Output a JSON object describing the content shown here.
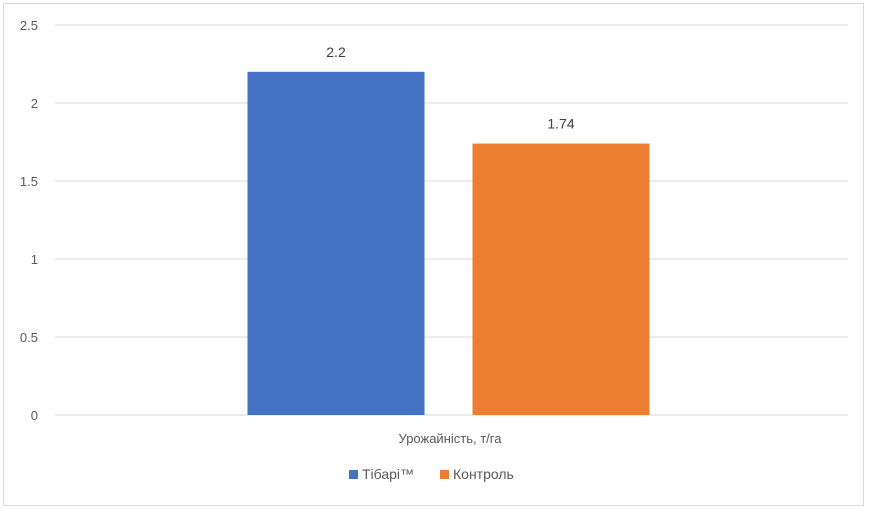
{
  "chart_data": {
    "type": "bar",
    "categories": [
      "Урожайність, т/га"
    ],
    "series": [
      {
        "name": "Тібарі™",
        "values": [
          2.2
        ],
        "color": "#4472c4"
      },
      {
        "name": "Контроль",
        "values": [
          1.74
        ],
        "color": "#ed7d31"
      }
    ],
    "ylim": [
      0,
      2.5
    ],
    "yticks": [
      "0",
      "0.5",
      "1",
      "1.5",
      "2",
      "2.5"
    ],
    "ytick_values": [
      0,
      0.5,
      1,
      1.5,
      2,
      2.5
    ],
    "data_labels": [
      "2.2",
      "1.74"
    ],
    "grid": true,
    "legend_position": "bottom",
    "colors": {
      "gridline": "#d9d9d9",
      "axis_text": "#595959"
    }
  }
}
